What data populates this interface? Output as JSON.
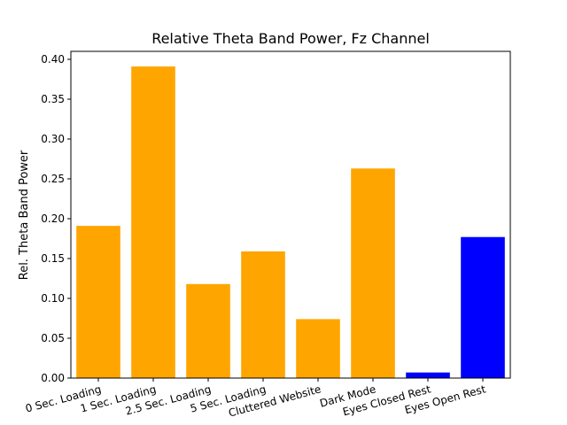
{
  "chart_data": {
    "type": "bar",
    "title": "Relative Theta Band Power, Fz Channel",
    "xlabel": "",
    "ylabel": "Rel. Theta Band Power",
    "categories": [
      "0 Sec. Loading",
      "1 Sec. Loading",
      "2.5 Sec. Loading",
      "5 Sec. Loading",
      "Cluttered Website",
      "Dark Mode",
      "Eyes Closed Rest",
      "Eyes Open Rest"
    ],
    "values": [
      0.191,
      0.391,
      0.118,
      0.159,
      0.074,
      0.263,
      0.007,
      0.177
    ],
    "bar_colors": [
      "#FFA500",
      "#FFA500",
      "#FFA500",
      "#FFA500",
      "#FFA500",
      "#FFA500",
      "#0000FF",
      "#0000FF"
    ],
    "ylim": [
      0,
      0.41
    ],
    "yticks": [
      "0.00",
      "0.05",
      "0.10",
      "0.15",
      "0.20",
      "0.25",
      "0.30",
      "0.35",
      "0.40"
    ],
    "grid": false,
    "legend": "none"
  }
}
